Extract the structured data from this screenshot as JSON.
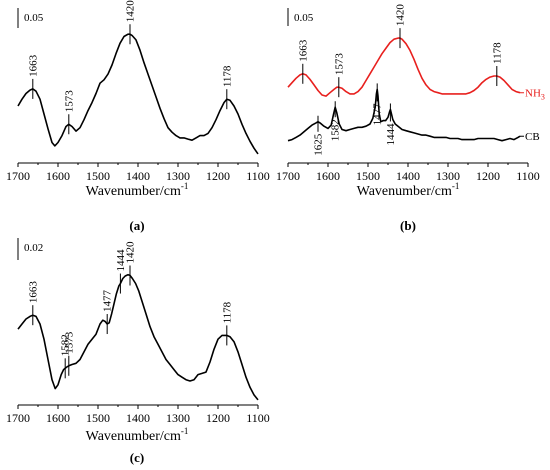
{
  "chart_data": [
    {
      "type": "line",
      "panel_label": "(a)",
      "scale_bar_label": "0.05",
      "xlabel": "Wavenumber/cm",
      "xlabel_sup": "-1",
      "xlim": [
        1700,
        1100
      ],
      "xticks": [
        1700,
        1600,
        1500,
        1400,
        1300,
        1200,
        1100
      ],
      "peak_labels": [
        1663,
        1573,
        1420,
        1178
      ],
      "series": [
        {
          "color": "#000000",
          "x": [
            1700,
            1690,
            1680,
            1670,
            1663,
            1655,
            1645,
            1635,
            1625,
            1615,
            1608,
            1600,
            1590,
            1580,
            1573,
            1565,
            1555,
            1545,
            1535,
            1525,
            1515,
            1505,
            1495,
            1485,
            1475,
            1465,
            1455,
            1445,
            1435,
            1425,
            1420,
            1415,
            1405,
            1395,
            1385,
            1375,
            1365,
            1355,
            1345,
            1335,
            1325,
            1315,
            1305,
            1295,
            1285,
            1275,
            1265,
            1255,
            1245,
            1235,
            1225,
            1215,
            1205,
            1195,
            1185,
            1178,
            1170,
            1160,
            1150,
            1140,
            1130,
            1120,
            1110,
            1100
          ],
          "y": [
            0.022,
            0.028,
            0.033,
            0.036,
            0.037,
            0.035,
            0.028,
            0.015,
            0.002,
            -0.01,
            -0.013,
            -0.01,
            -0.004,
            0.004,
            0.006,
            0.004,
            0.0,
            0.003,
            0.01,
            0.018,
            0.025,
            0.033,
            0.042,
            0.045,
            0.05,
            0.058,
            0.068,
            0.077,
            0.083,
            0.085,
            0.085,
            0.084,
            0.08,
            0.071,
            0.06,
            0.05,
            0.04,
            0.03,
            0.02,
            0.011,
            0.003,
            -0.001,
            -0.004,
            -0.006,
            -0.006,
            -0.007,
            -0.008,
            -0.006,
            -0.004,
            -0.004,
            -0.002,
            0.003,
            0.01,
            0.018,
            0.025,
            0.028,
            0.027,
            0.022,
            0.015,
            0.006,
            -0.002,
            -0.009,
            -0.015,
            -0.02
          ]
        }
      ]
    },
    {
      "type": "line",
      "panel_label": "(b)",
      "scale_bar_label": "0.05",
      "xlabel": "Wavenumber/cm",
      "xlabel_sup": "-1",
      "xlim": [
        1700,
        1100
      ],
      "xticks": [
        1700,
        1600,
        1500,
        1400,
        1300,
        1200,
        1100
      ],
      "peak_labels": [
        1663,
        1573,
        1420,
        1178
      ],
      "peak_labels_cb": [
        1625,
        1582,
        1477,
        1444
      ],
      "series": [
        {
          "name": "NH",
          "name_sub": "3",
          "color": "#e8201e",
          "x": [
            1700,
            1690,
            1680,
            1670,
            1663,
            1655,
            1645,
            1635,
            1625,
            1615,
            1605,
            1595,
            1585,
            1578,
            1573,
            1565,
            1555,
            1545,
            1535,
            1525,
            1515,
            1505,
            1495,
            1485,
            1475,
            1465,
            1455,
            1445,
            1435,
            1425,
            1420,
            1415,
            1405,
            1395,
            1385,
            1375,
            1365,
            1355,
            1345,
            1335,
            1325,
            1315,
            1305,
            1295,
            1285,
            1275,
            1265,
            1255,
            1245,
            1235,
            1225,
            1215,
            1205,
            1195,
            1185,
            1178,
            1170,
            1160,
            1150,
            1140,
            1130,
            1120
          ],
          "y": [
            0.006,
            0.01,
            0.014,
            0.017,
            0.018,
            0.017,
            0.013,
            0.008,
            0.003,
            -0.001,
            -0.002,
            0.001,
            0.004,
            0.006,
            0.006,
            0.005,
            0.002,
            0.0,
            0.0,
            0.002,
            0.006,
            0.012,
            0.018,
            0.024,
            0.03,
            0.036,
            0.041,
            0.046,
            0.049,
            0.05,
            0.05,
            0.049,
            0.045,
            0.039,
            0.031,
            0.022,
            0.014,
            0.008,
            0.004,
            0.002,
            0.001,
            0.0,
            0.0,
            0.0,
            0.0,
            0.0,
            0.0,
            0.0,
            0.001,
            0.003,
            0.006,
            0.01,
            0.013,
            0.015,
            0.016,
            0.016,
            0.015,
            0.012,
            0.008,
            0.004,
            0.002,
            0.001
          ]
        },
        {
          "name": "CB",
          "color": "#000000",
          "x": [
            1700,
            1690,
            1680,
            1670,
            1660,
            1650,
            1640,
            1630,
            1625,
            1620,
            1610,
            1600,
            1592,
            1586,
            1582,
            1578,
            1572,
            1565,
            1555,
            1545,
            1535,
            1525,
            1515,
            1505,
            1495,
            1488,
            1482,
            1479,
            1477,
            1475,
            1472,
            1468,
            1462,
            1456,
            1450,
            1446,
            1444,
            1442,
            1438,
            1432,
            1425,
            1415,
            1405,
            1395,
            1385,
            1375,
            1365,
            1355,
            1345,
            1335,
            1325,
            1315,
            1305,
            1295,
            1285,
            1275,
            1265,
            1255,
            1245,
            1235,
            1225,
            1215,
            1205,
            1195,
            1185,
            1175,
            1165,
            1155,
            1145,
            1135,
            1125,
            1120
          ],
          "y": [
            -0.042,
            -0.041,
            -0.039,
            -0.037,
            -0.034,
            -0.031,
            -0.028,
            -0.026,
            -0.025,
            -0.026,
            -0.029,
            -0.031,
            -0.028,
            -0.018,
            -0.012,
            -0.017,
            -0.027,
            -0.032,
            -0.033,
            -0.032,
            -0.031,
            -0.03,
            -0.03,
            -0.029,
            -0.027,
            -0.022,
            -0.012,
            0.0,
            0.004,
            -0.002,
            -0.018,
            -0.025,
            -0.024,
            -0.024,
            -0.021,
            -0.016,
            -0.014,
            -0.017,
            -0.023,
            -0.027,
            -0.029,
            -0.032,
            -0.033,
            -0.034,
            -0.035,
            -0.036,
            -0.037,
            -0.037,
            -0.038,
            -0.039,
            -0.039,
            -0.039,
            -0.039,
            -0.04,
            -0.04,
            -0.04,
            -0.041,
            -0.041,
            -0.041,
            -0.041,
            -0.04,
            -0.04,
            -0.04,
            -0.04,
            -0.04,
            -0.041,
            -0.042,
            -0.041,
            -0.04,
            -0.041,
            -0.039,
            -0.038
          ]
        }
      ]
    },
    {
      "type": "line",
      "panel_label": "(c)",
      "scale_bar_label": "0.02",
      "xlabel": "Wavenumber/cm",
      "xlabel_sup": "-1",
      "xlim": [
        1700,
        1100
      ],
      "xticks": [
        1700,
        1600,
        1500,
        1400,
        1300,
        1200,
        1100
      ],
      "peak_labels": [
        1663,
        1582,
        1573,
        1477,
        1444,
        1420,
        1178
      ],
      "series": [
        {
          "color": "#000000",
          "x": [
            1700,
            1690,
            1680,
            1670,
            1663,
            1655,
            1645,
            1635,
            1625,
            1615,
            1607,
            1600,
            1592,
            1586,
            1582,
            1578,
            1573,
            1565,
            1555,
            1545,
            1535,
            1525,
            1515,
            1505,
            1495,
            1488,
            1482,
            1477,
            1472,
            1466,
            1460,
            1454,
            1448,
            1444,
            1438,
            1432,
            1425,
            1420,
            1414,
            1406,
            1398,
            1390,
            1380,
            1370,
            1360,
            1350,
            1340,
            1330,
            1320,
            1310,
            1300,
            1290,
            1280,
            1270,
            1260,
            1250,
            1240,
            1230,
            1220,
            1210,
            1200,
            1190,
            1178,
            1170,
            1160,
            1150,
            1140,
            1130,
            1120,
            1110,
            1100
          ],
          "y": [
            0.01,
            0.012,
            0.014,
            0.015,
            0.0155,
            0.015,
            0.012,
            0.006,
            -0.002,
            -0.01,
            -0.0135,
            -0.012,
            -0.008,
            -0.006,
            -0.0055,
            -0.005,
            -0.0045,
            -0.004,
            -0.0035,
            -0.002,
            0.001,
            0.004,
            0.006,
            0.008,
            0.012,
            0.0135,
            0.013,
            0.012,
            0.0125,
            0.016,
            0.02,
            0.024,
            0.027,
            0.028,
            0.03,
            0.031,
            0.0315,
            0.0312,
            0.03,
            0.028,
            0.025,
            0.021,
            0.016,
            0.011,
            0.007,
            0.004,
            0.001,
            -0.002,
            -0.004,
            -0.006,
            -0.008,
            -0.009,
            -0.01,
            -0.0105,
            -0.01,
            -0.008,
            -0.0075,
            -0.007,
            -0.003,
            0.002,
            0.006,
            0.0075,
            0.0075,
            0.007,
            0.005,
            0.001,
            -0.004,
            -0.009,
            -0.013,
            -0.016,
            -0.018
          ]
        }
      ]
    }
  ]
}
